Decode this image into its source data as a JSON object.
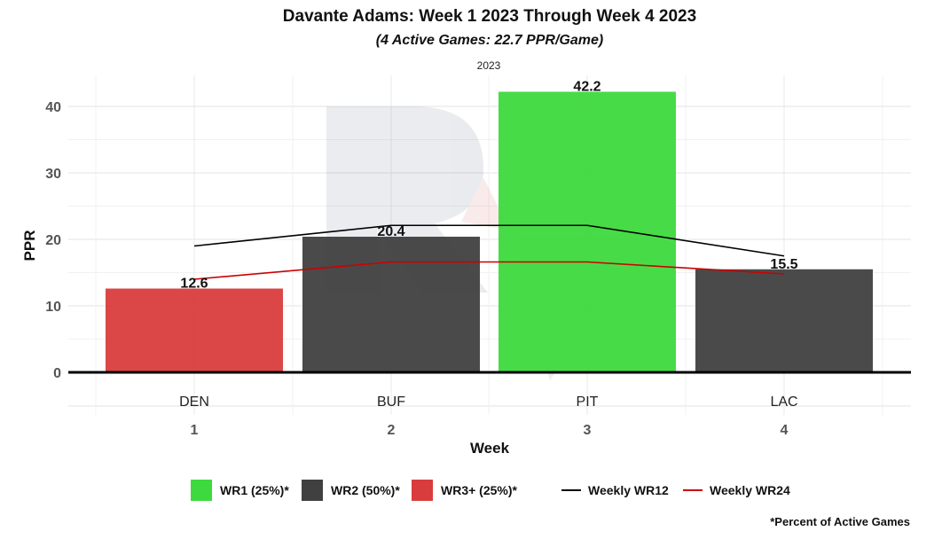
{
  "chart_data": {
    "type": "bar",
    "title": "Davante Adams: Week 1 2023 Through Week 4 2023",
    "subtitle": "(4 Active Games: 22.7 PPR/Game)",
    "facet_label": "2023",
    "xlabel": "Week",
    "ylabel": "PPR",
    "ylim": [
      0,
      45
    ],
    "yticks": [
      0,
      10,
      20,
      30,
      40
    ],
    "categories": [
      "1",
      "2",
      "3",
      "4"
    ],
    "teams": [
      "DEN",
      "BUF",
      "PIT",
      "LAC"
    ],
    "values": [
      12.6,
      20.4,
      42.2,
      15.5
    ],
    "value_labels": [
      "12.6",
      "20.4",
      "42.2",
      "15.5"
    ],
    "bar_tiers": [
      "WR3+",
      "WR2",
      "WR1",
      "WR2"
    ],
    "lines": [
      {
        "name": "Weekly WR12",
        "color": "#000000",
        "values": [
          19.0,
          22.1,
          22.1,
          17.5
        ]
      },
      {
        "name": "Weekly WR24",
        "color": "#cc0000",
        "values": [
          14.0,
          16.6,
          16.6,
          14.8
        ]
      }
    ],
    "legend": {
      "bars": [
        {
          "label": "WR1 (25%)*",
          "color": "#3ed93e"
        },
        {
          "label": "WR2 (50%)*",
          "color": "#404040"
        },
        {
          "label": "WR3+ (25%)*",
          "color": "#d93c3c"
        }
      ],
      "lines": [
        {
          "label": "Weekly WR12",
          "color": "#000000"
        },
        {
          "label": "Weekly WR24",
          "color": "#cc0000"
        }
      ],
      "placement": "bottom"
    },
    "grid": true,
    "caption": "*Percent of Active Games"
  },
  "colors": {
    "WR1": "#3ed93e",
    "WR2": "#404040",
    "WR3+": "#d93c3c"
  }
}
